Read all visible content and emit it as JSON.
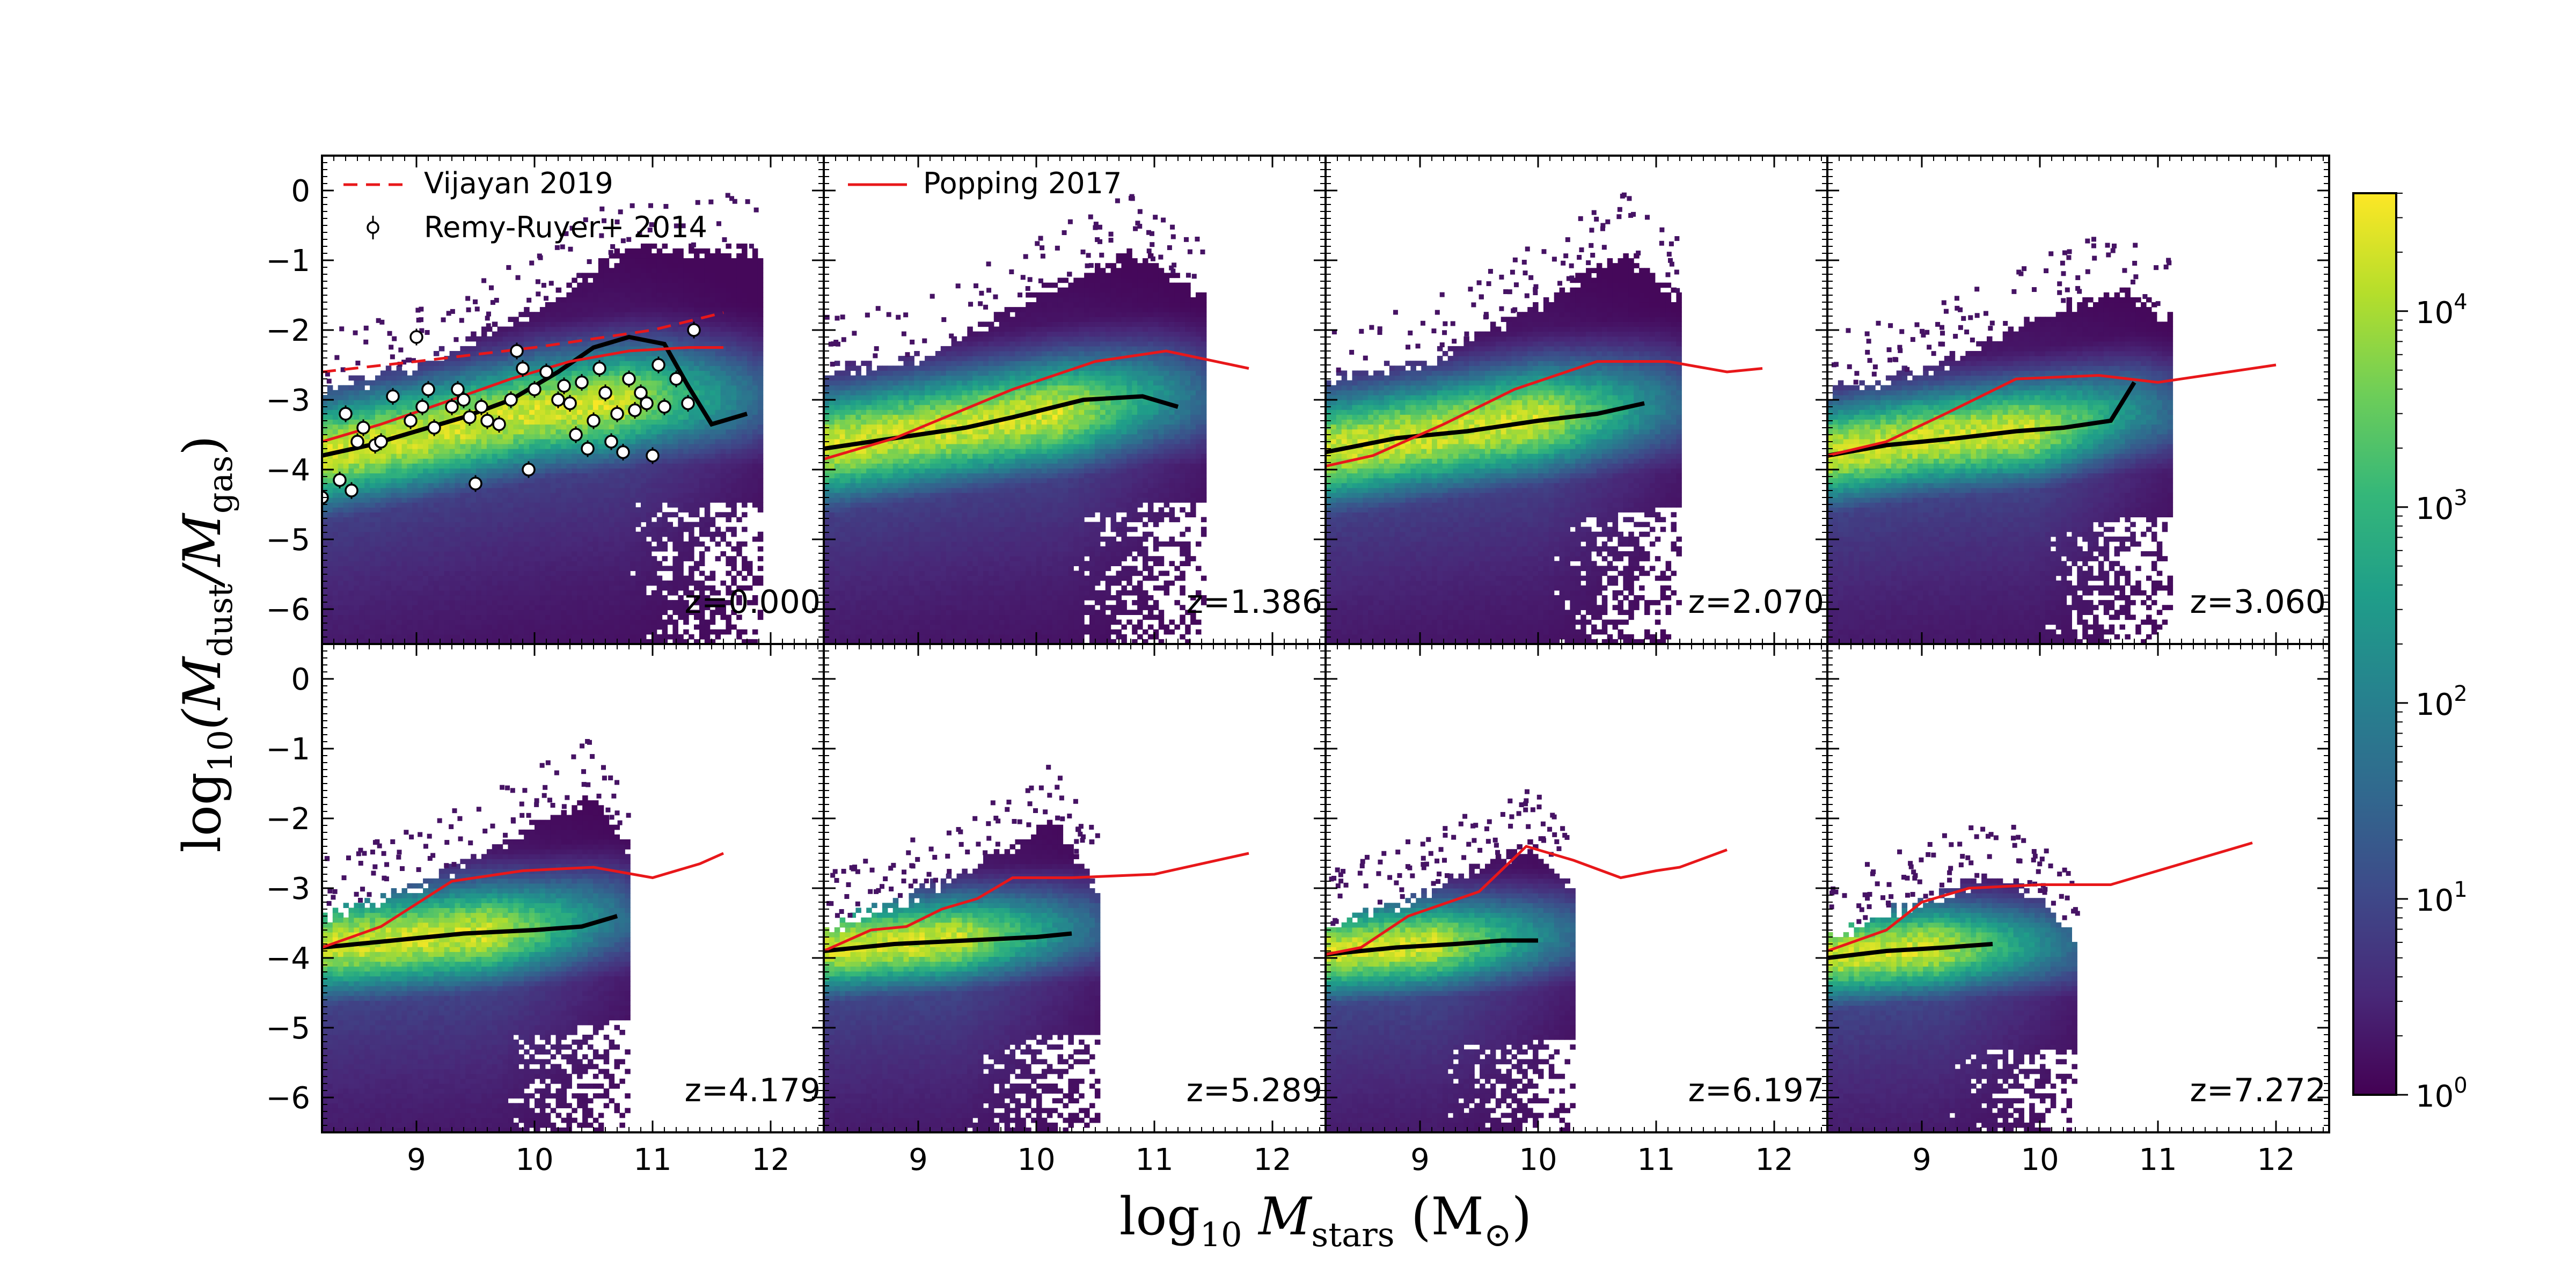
{
  "chart_data": {
    "type": "heatmap",
    "figure_kind": "2D histogram grid with overlaid median lines and observations",
    "xlabel": {
      "pre": "log",
      "sub1": "10",
      "mid": " M",
      "sub2": "stars",
      "post": " (M",
      "sub3": "⊙",
      "end": ")"
    },
    "ylabel": {
      "pre": "log",
      "sub1": "10",
      "mid": "(M",
      "sub2": "dust",
      "slash": "/M",
      "sub3": "gas",
      "end": ")"
    },
    "xlim": [
      8.2,
      12.45
    ],
    "ylim": [
      -6.5,
      0.5
    ],
    "xticks": [
      9,
      10,
      11,
      12
    ],
    "xtick_labels": [
      "9",
      "10",
      "11",
      "12"
    ],
    "yticks": [
      0,
      -1,
      -2,
      -3,
      -4,
      -5,
      -6
    ],
    "ytick_labels": [
      "0",
      "−1",
      "−2",
      "−3",
      "−4",
      "−5",
      "−6"
    ],
    "colorbar": {
      "scale": "log",
      "range": [
        1,
        40000
      ],
      "ticks": [
        1,
        10,
        100,
        1000,
        10000
      ],
      "tick_labels": [
        {
          "base": "10",
          "exp": "0"
        },
        {
          "base": "10",
          "exp": "1"
        },
        {
          "base": "10",
          "exp": "2"
        },
        {
          "base": "10",
          "exp": "3"
        },
        {
          "base": "10",
          "exp": "4"
        }
      ],
      "colors": [
        "#440154",
        "#482878",
        "#3e4989",
        "#31688e",
        "#26828e",
        "#1f9e89",
        "#35b779",
        "#6ece58",
        "#b5de2b",
        "#fde725"
      ]
    },
    "legend": [
      {
        "label": "Vijayan 2019",
        "style": "red-dashed",
        "panel": 0
      },
      {
        "label": "Remy-Ruyer+ 2014",
        "style": "open-circle-errorbar",
        "panel": 0
      },
      {
        "label": "Popping 2017",
        "style": "red-solid",
        "panel": 1
      }
    ],
    "panels": [
      {
        "z": "z=0.000",
        "density": {
          "xmin": 8.2,
          "xmax": 11.9,
          "ridge": [
            [
              8.2,
              -3.8
            ],
            [
              9.0,
              -3.55
            ],
            [
              10.0,
              -3.2
            ],
            [
              11.0,
              -3.0
            ]
          ],
          "spread": 0.55,
          "upper": [
            [
              8.2,
              -2.8
            ],
            [
              9.0,
              -2.4
            ],
            [
              10.0,
              -1.6
            ],
            [
              10.8,
              -0.7
            ],
            [
              11.5,
              -0.8
            ]
          ],
          "lower": -6.5
        },
        "median": {
          "x": [
            8.2,
            8.6,
            9.0,
            9.4,
            9.8,
            10.2,
            10.5,
            10.8,
            11.1,
            11.3,
            11.5,
            11.8
          ],
          "y": [
            -3.8,
            -3.65,
            -3.45,
            -3.25,
            -3.0,
            -2.6,
            -2.25,
            -2.1,
            -2.2,
            -2.8,
            -3.35,
            -3.2
          ]
        },
        "popping": {
          "x": [
            8.2,
            8.7,
            9.3,
            9.8,
            10.3,
            10.8,
            11.3,
            11.6
          ],
          "y": [
            -3.6,
            -3.35,
            -3.0,
            -2.7,
            -2.45,
            -2.3,
            -2.25,
            -2.25
          ]
        },
        "vijayan": {
          "x": [
            8.2,
            9.0,
            10.0,
            11.0,
            11.6
          ],
          "y": [
            -2.6,
            -2.45,
            -2.25,
            -2.0,
            -1.75
          ]
        },
        "remy_ruyer": [
          [
            8.2,
            -4.4
          ],
          [
            8.35,
            -4.15
          ],
          [
            8.45,
            -4.3
          ],
          [
            8.4,
            -3.2
          ],
          [
            8.5,
            -3.6
          ],
          [
            8.55,
            -3.4
          ],
          [
            8.65,
            -3.65
          ],
          [
            8.7,
            -3.6
          ],
          [
            8.8,
            -2.95
          ],
          [
            8.95,
            -3.3
          ],
          [
            9.0,
            -2.1
          ],
          [
            9.05,
            -3.1
          ],
          [
            9.1,
            -2.85
          ],
          [
            9.15,
            -3.4
          ],
          [
            9.3,
            -3.1
          ],
          [
            9.35,
            -2.85
          ],
          [
            9.4,
            -3.0
          ],
          [
            9.45,
            -3.25
          ],
          [
            9.5,
            -4.2
          ],
          [
            9.55,
            -3.1
          ],
          [
            9.6,
            -3.3
          ],
          [
            9.7,
            -3.35
          ],
          [
            9.8,
            -3.0
          ],
          [
            9.85,
            -2.3
          ],
          [
            9.9,
            -2.55
          ],
          [
            9.95,
            -4.0
          ],
          [
            10.0,
            -2.85
          ],
          [
            10.1,
            -2.6
          ],
          [
            10.2,
            -3.0
          ],
          [
            10.25,
            -2.8
          ],
          [
            10.3,
            -3.05
          ],
          [
            10.35,
            -3.5
          ],
          [
            10.4,
            -2.75
          ],
          [
            10.45,
            -3.7
          ],
          [
            10.5,
            -3.3
          ],
          [
            10.55,
            -2.55
          ],
          [
            10.6,
            -2.9
          ],
          [
            10.65,
            -3.6
          ],
          [
            10.7,
            -3.2
          ],
          [
            10.75,
            -3.75
          ],
          [
            10.8,
            -2.7
          ],
          [
            10.85,
            -3.15
          ],
          [
            10.9,
            -2.9
          ],
          [
            10.95,
            -3.05
          ],
          [
            11.0,
            -3.8
          ],
          [
            11.05,
            -2.5
          ],
          [
            11.1,
            -3.1
          ],
          [
            11.2,
            -2.7
          ],
          [
            11.3,
            -3.05
          ],
          [
            11.35,
            -2.0
          ]
        ]
      },
      {
        "z": "z=1.386",
        "density": {
          "xmin": 8.2,
          "xmax": 11.4,
          "ridge": [
            [
              8.2,
              -3.7
            ],
            [
              9.0,
              -3.5
            ],
            [
              10.0,
              -3.25
            ],
            [
              11.0,
              -3.0
            ]
          ],
          "spread": 0.55,
          "upper": [
            [
              8.2,
              -2.5
            ],
            [
              9.0,
              -2.3
            ],
            [
              10.0,
              -1.4
            ],
            [
              10.8,
              -0.8
            ],
            [
              11.3,
              -1.3
            ]
          ],
          "lower": -6.5
        },
        "median": {
          "x": [
            8.2,
            8.8,
            9.4,
            9.8,
            10.4,
            10.9,
            11.2
          ],
          "y": [
            -3.7,
            -3.55,
            -3.4,
            -3.25,
            -3.0,
            -2.95,
            -3.1
          ]
        },
        "popping": {
          "x": [
            8.2,
            8.8,
            9.3,
            9.8,
            10.5,
            11.1,
            11.8
          ],
          "y": [
            -3.85,
            -3.55,
            -3.2,
            -2.85,
            -2.45,
            -2.3,
            -2.55
          ]
        }
      },
      {
        "z": "z=2.070",
        "density": {
          "xmin": 8.2,
          "xmax": 11.2,
          "ridge": [
            [
              8.2,
              -3.75
            ],
            [
              9.0,
              -3.55
            ],
            [
              10.0,
              -3.3
            ],
            [
              11.0,
              -3.1
            ]
          ],
          "spread": 0.55,
          "upper": [
            [
              8.2,
              -2.6
            ],
            [
              9.0,
              -2.4
            ],
            [
              10.0,
              -1.5
            ],
            [
              10.7,
              -0.8
            ],
            [
              11.1,
              -1.4
            ]
          ],
          "lower": -6.5
        },
        "median": {
          "x": [
            8.2,
            8.8,
            9.4,
            10.0,
            10.5,
            10.9
          ],
          "y": [
            -3.75,
            -3.55,
            -3.45,
            -3.3,
            -3.2,
            -3.05
          ]
        },
        "popping": {
          "x": [
            8.2,
            8.6,
            9.2,
            9.8,
            10.5,
            11.1,
            11.6,
            11.9
          ],
          "y": [
            -3.95,
            -3.8,
            -3.35,
            -2.85,
            -2.45,
            -2.45,
            -2.6,
            -2.55
          ]
        }
      },
      {
        "z": "z=3.060",
        "density": {
          "xmin": 8.2,
          "xmax": 11.1,
          "ridge": [
            [
              8.2,
              -3.8
            ],
            [
              9.0,
              -3.6
            ],
            [
              10.0,
              -3.45
            ],
            [
              10.8,
              -3.2
            ]
          ],
          "spread": 0.5,
          "upper": [
            [
              8.2,
              -2.8
            ],
            [
              9.0,
              -2.5
            ],
            [
              10.0,
              -1.7
            ],
            [
              10.7,
              -1.3
            ],
            [
              11.0,
              -1.7
            ]
          ],
          "lower": -6.5
        },
        "median": {
          "x": [
            8.2,
            8.7,
            9.3,
            9.8,
            10.2,
            10.6,
            10.8
          ],
          "y": [
            -3.8,
            -3.65,
            -3.55,
            -3.45,
            -3.4,
            -3.3,
            -2.75
          ]
        },
        "popping": {
          "x": [
            8.2,
            8.7,
            9.2,
            9.8,
            10.5,
            11.0,
            11.6,
            12.0
          ],
          "y": [
            -3.8,
            -3.6,
            -3.2,
            -2.7,
            -2.65,
            -2.75,
            -2.6,
            -2.5
          ]
        }
      },
      {
        "z": "z=4.179",
        "density": {
          "xmin": 8.2,
          "xmax": 10.8,
          "ridge": [
            [
              8.2,
              -3.85
            ],
            [
              9.0,
              -3.75
            ],
            [
              10.0,
              -3.6
            ],
            [
              10.6,
              -3.45
            ]
          ],
          "spread": 0.5,
          "upper": [
            [
              8.2,
              -3.3
            ],
            [
              9.0,
              -2.9
            ],
            [
              10.0,
              -2.0
            ],
            [
              10.5,
              -1.6
            ],
            [
              10.8,
              -2.4
            ]
          ],
          "lower": -6.5
        },
        "median": {
          "x": [
            8.2,
            8.8,
            9.4,
            10.0,
            10.4,
            10.7
          ],
          "y": [
            -3.85,
            -3.75,
            -3.65,
            -3.6,
            -3.55,
            -3.4
          ]
        },
        "popping": {
          "x": [
            8.2,
            8.7,
            9.3,
            9.9,
            10.5,
            11.0,
            11.4,
            11.6
          ],
          "y": [
            -3.85,
            -3.55,
            -2.9,
            -2.75,
            -2.7,
            -2.85,
            -2.65,
            -2.5
          ]
        }
      },
      {
        "z": "z=5.289",
        "density": {
          "xmin": 8.2,
          "xmax": 10.5,
          "ridge": [
            [
              8.2,
              -3.9
            ],
            [
              9.0,
              -3.8
            ],
            [
              10.0,
              -3.65
            ],
            [
              10.4,
              -3.6
            ]
          ],
          "spread": 0.45,
          "upper": [
            [
              8.2,
              -3.5
            ],
            [
              9.0,
              -3.0
            ],
            [
              9.8,
              -2.3
            ],
            [
              10.1,
              -1.9
            ],
            [
              10.5,
              -2.9
            ]
          ],
          "lower": -6.5
        },
        "median": {
          "x": [
            8.2,
            8.8,
            9.4,
            10.0,
            10.3
          ],
          "y": [
            -3.9,
            -3.8,
            -3.75,
            -3.7,
            -3.65
          ]
        },
        "popping": {
          "x": [
            8.2,
            8.6,
            8.9,
            9.2,
            9.5,
            9.8,
            10.3,
            11.0,
            11.8
          ],
          "y": [
            -3.9,
            -3.6,
            -3.55,
            -3.3,
            -3.15,
            -2.85,
            -2.85,
            -2.8,
            -2.5
          ]
        }
      },
      {
        "z": "z=6.197",
        "density": {
          "xmin": 8.2,
          "xmax": 10.3,
          "ridge": [
            [
              8.2,
              -3.95
            ],
            [
              9.0,
              -3.85
            ],
            [
              9.8,
              -3.75
            ],
            [
              10.2,
              -3.7
            ]
          ],
          "spread": 0.45,
          "upper": [
            [
              8.2,
              -3.5
            ],
            [
              9.0,
              -3.0
            ],
            [
              9.6,
              -2.5
            ],
            [
              9.9,
              -2.3
            ],
            [
              10.3,
              -3.0
            ]
          ],
          "lower": -6.5
        },
        "median": {
          "x": [
            8.2,
            8.8,
            9.3,
            9.7,
            10.0
          ],
          "y": [
            -3.95,
            -3.85,
            -3.8,
            -3.75,
            -3.75
          ]
        },
        "popping": {
          "x": [
            8.2,
            8.5,
            8.9,
            9.5,
            9.9,
            10.3,
            10.7,
            11.0,
            11.2,
            11.6
          ],
          "y": [
            -3.95,
            -3.85,
            -3.4,
            -3.05,
            -2.4,
            -2.6,
            -2.85,
            -2.75,
            -2.7,
            -2.45
          ]
        }
      },
      {
        "z": "z=7.272",
        "density": {
          "xmin": 8.2,
          "xmax": 10.3,
          "ridge": [
            [
              8.2,
              -4.0
            ],
            [
              9.0,
              -3.9
            ],
            [
              9.6,
              -3.85
            ],
            [
              10.0,
              -3.85
            ]
          ],
          "spread": 0.45,
          "upper": [
            [
              8.2,
              -3.6
            ],
            [
              9.0,
              -3.1
            ],
            [
              9.6,
              -2.7
            ],
            [
              9.9,
              -3.0
            ],
            [
              10.3,
              -3.6
            ]
          ],
          "lower": -6.5
        },
        "median": {
          "x": [
            8.2,
            8.7,
            9.2,
            9.6
          ],
          "y": [
            -4.0,
            -3.9,
            -3.85,
            -3.8
          ]
        },
        "popping": {
          "x": [
            8.2,
            8.7,
            9.0,
            9.4,
            10.0,
            10.6,
            11.2,
            11.8
          ],
          "y": [
            -3.9,
            -3.6,
            -3.2,
            -3.0,
            -2.95,
            -2.95,
            -2.65,
            -2.35
          ]
        }
      }
    ]
  }
}
